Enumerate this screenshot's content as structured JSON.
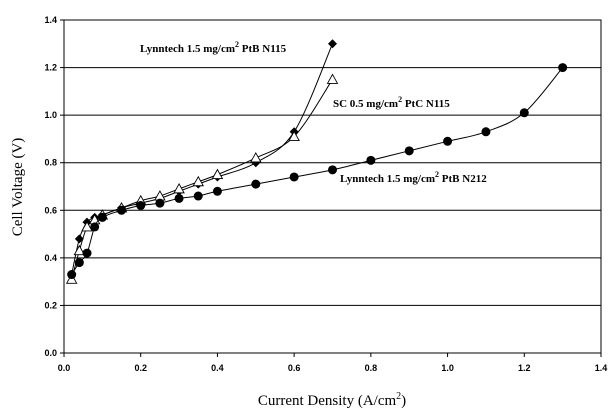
{
  "chart_data": {
    "type": "line",
    "xlabel": "Current Density (A/cm²)",
    "ylabel": "Cell Voltage (V)",
    "xlim": [
      0,
      1.4
    ],
    "ylim": [
      0,
      1.4
    ],
    "x_ticks": [
      "0.0",
      "0.2",
      "0.4",
      "0.6",
      "0.8",
      "1.0",
      "1.2",
      "1.4"
    ],
    "y_ticks": [
      "0.0",
      "0.2",
      "0.4",
      "0.6",
      "0.8",
      "1.0",
      "1.2",
      "1.4"
    ],
    "grid": "horizontal",
    "series": [
      {
        "name": "Lynntech 1.5 mg/cm² PtB N115",
        "marker": "filled-diamond",
        "color": "#000000",
        "x": [
          0.02,
          0.04,
          0.06,
          0.08,
          0.1,
          0.15,
          0.2,
          0.25,
          0.3,
          0.35,
          0.4,
          0.5,
          0.6,
          0.7
        ],
        "y": [
          0.33,
          0.48,
          0.55,
          0.57,
          0.58,
          0.61,
          0.63,
          0.65,
          0.68,
          0.71,
          0.74,
          0.8,
          0.93,
          1.3
        ]
      },
      {
        "name": "SC 0.5 mg/cm² PtC N115",
        "marker": "open-triangle",
        "color": "#000000",
        "x": [
          0.02,
          0.04,
          0.06,
          0.08,
          0.1,
          0.15,
          0.2,
          0.25,
          0.3,
          0.35,
          0.4,
          0.5,
          0.6,
          0.7
        ],
        "y": [
          0.31,
          0.43,
          0.53,
          0.56,
          0.58,
          0.61,
          0.64,
          0.66,
          0.69,
          0.72,
          0.75,
          0.82,
          0.91,
          1.15
        ]
      },
      {
        "name": "Lynntech 1.5 mg/cm² PtB N212",
        "marker": "filled-circle",
        "color": "#000000",
        "x": [
          0.02,
          0.04,
          0.06,
          0.08,
          0.1,
          0.15,
          0.2,
          0.25,
          0.3,
          0.35,
          0.4,
          0.5,
          0.6,
          0.7,
          0.8,
          0.9,
          1.0,
          1.1,
          1.2,
          1.3
        ],
        "y": [
          0.33,
          0.38,
          0.42,
          0.53,
          0.57,
          0.6,
          0.62,
          0.63,
          0.65,
          0.66,
          0.68,
          0.71,
          0.74,
          0.77,
          0.81,
          0.85,
          0.89,
          0.93,
          1.01,
          1.2
        ]
      }
    ]
  }
}
